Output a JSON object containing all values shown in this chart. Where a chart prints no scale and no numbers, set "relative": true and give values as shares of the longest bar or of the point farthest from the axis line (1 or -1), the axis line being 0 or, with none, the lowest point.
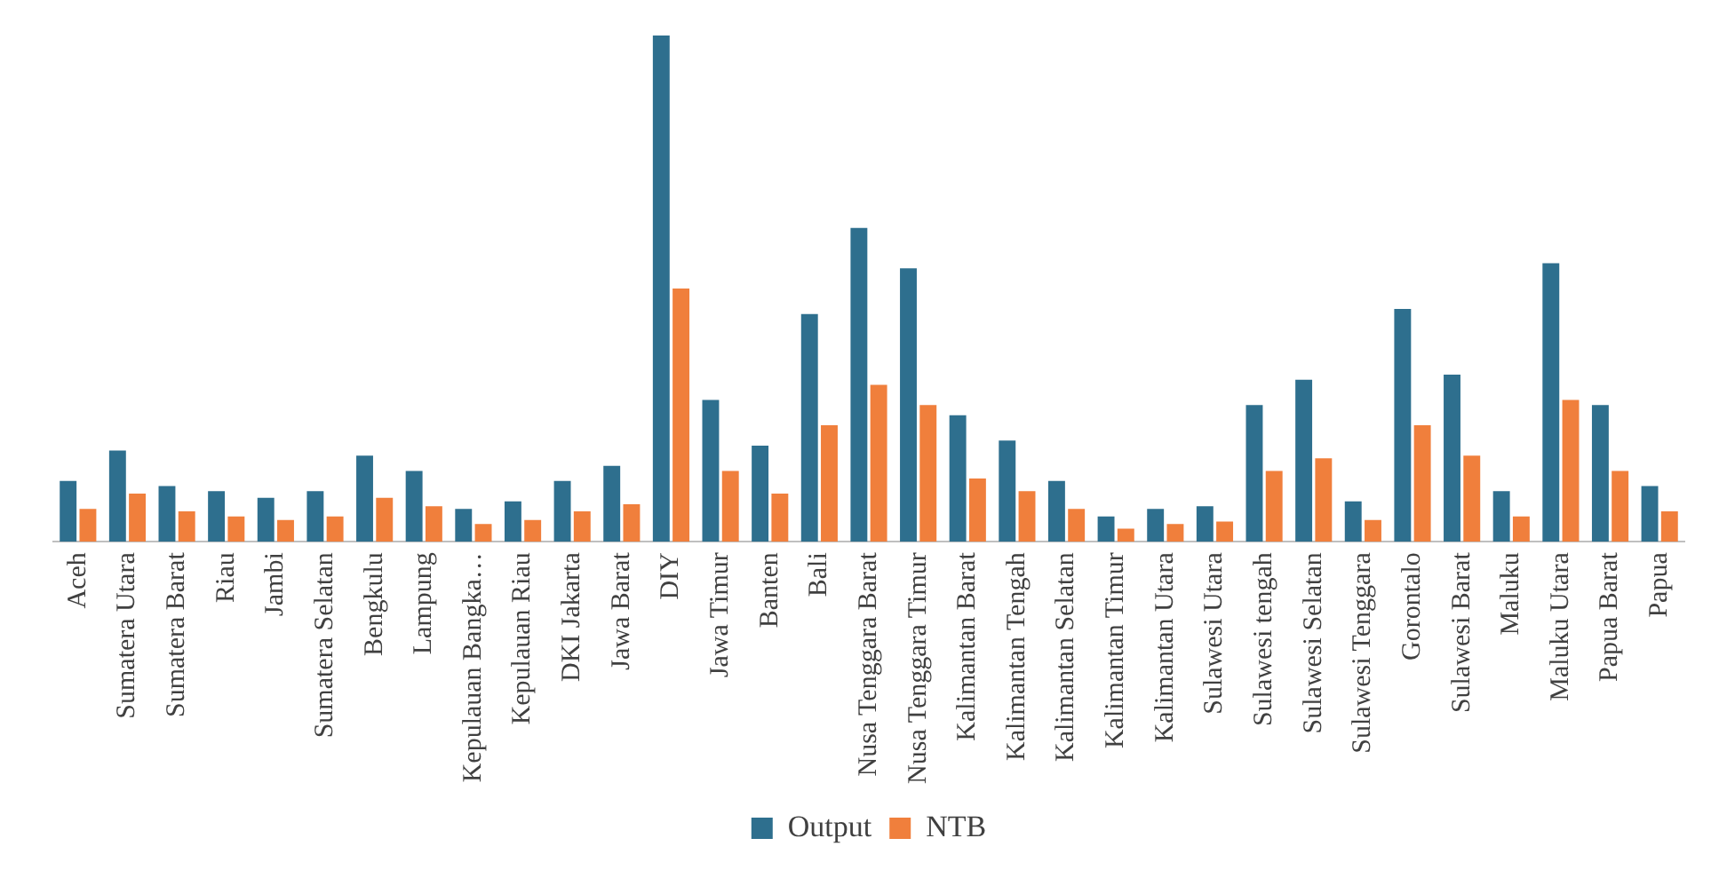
{
  "chart_data": {
    "type": "bar",
    "relative": true,
    "legend": "bottom",
    "categories": [
      "Aceh",
      "Sumatera Utara",
      "Sumatera Barat",
      "Riau",
      "Jambi",
      "Sumatera Selatan",
      "Bengkulu",
      "Lampung",
      "Kepulauan Bangka…",
      "Kepulauan Riau",
      "DKI Jakarta",
      "Jawa Barat",
      "DIY",
      "Jawa Timur",
      "Banten",
      "Bali",
      "Nusa Tenggara Barat",
      "Nusa Tenggara Timur",
      "Kalimantan Barat",
      "Kalimantan Tengah",
      "Kalimantan Selatan",
      "Kalimantan Timur",
      "Kalimantan Utara",
      "Sulawesi Utara",
      "Sulawesi tengah",
      "Sulawesi Selatan",
      "Sulawesi Tenggara",
      "Gorontalo",
      "Sulawesi Barat",
      "Maluku",
      "Maluku Utara",
      "Papua Barat",
      "Papua"
    ],
    "series": [
      {
        "name": "Output",
        "color": "#2e6f8e",
        "values": [
          0.12,
          0.18,
          0.11,
          0.1,
          0.087,
          0.1,
          0.17,
          0.14,
          0.065,
          0.08,
          0.12,
          0.15,
          1,
          0.28,
          0.19,
          0.45,
          0.62,
          0.54,
          0.25,
          0.2,
          0.12,
          0.05,
          0.065,
          0.07,
          0.27,
          0.32,
          0.08,
          0.46,
          0.33,
          0.1,
          0.55,
          0.27,
          0.11
        ]
      },
      {
        "name": "NTB",
        "color": "#f07f3c",
        "values": [
          0.065,
          0.095,
          0.06,
          0.05,
          0.043,
          0.05,
          0.087,
          0.07,
          0.035,
          0.043,
          0.06,
          0.074,
          0.5,
          0.14,
          0.095,
          0.23,
          0.31,
          0.27,
          0.125,
          0.1,
          0.065,
          0.026,
          0.035,
          0.04,
          0.14,
          0.165,
          0.043,
          0.23,
          0.17,
          0.05,
          0.28,
          0.14,
          0.06
        ]
      }
    ]
  }
}
